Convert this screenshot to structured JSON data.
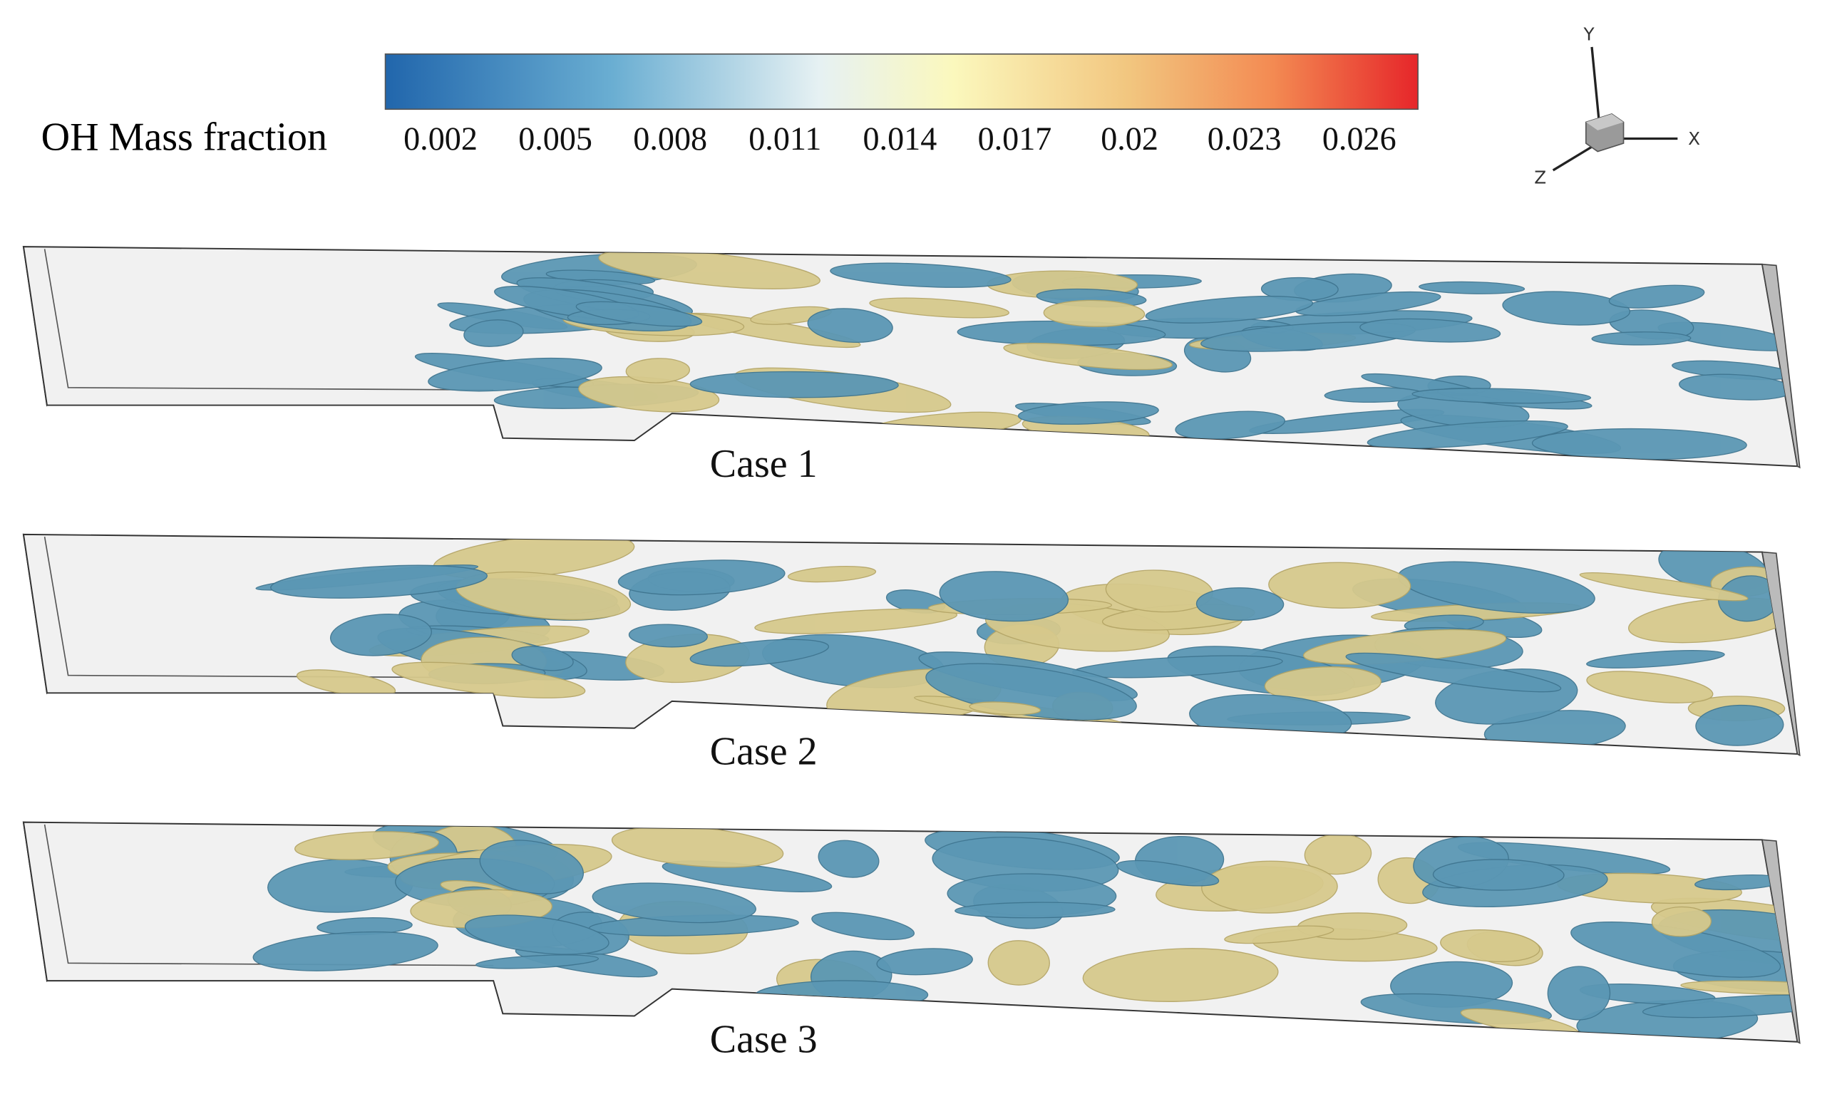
{
  "colorbar": {
    "label": "OH Mass fraction",
    "ticks": [
      0.002,
      0.005,
      0.008,
      0.011,
      0.014,
      0.017,
      0.02,
      0.023,
      0.026
    ]
  },
  "axes": {
    "y": "Y",
    "x": "X",
    "z": "Z"
  },
  "panels": [
    {
      "label": "Case 1"
    },
    {
      "label": "Case 2"
    },
    {
      "label": "Case 3"
    }
  ]
}
